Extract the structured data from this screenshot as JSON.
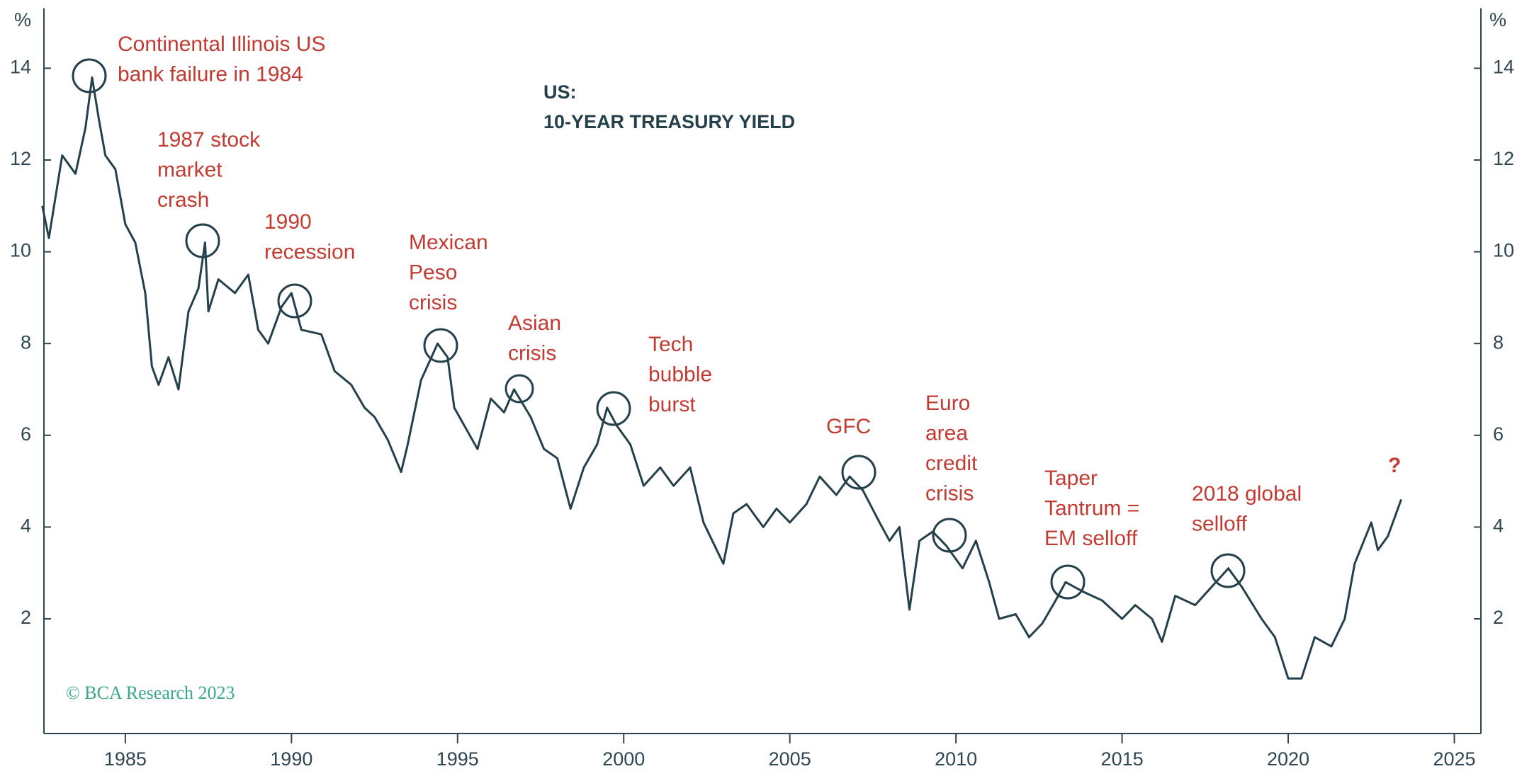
{
  "chart_data": {
    "type": "line",
    "title_lines": [
      "US:",
      "10-YEAR TREASURY YIELD"
    ],
    "y_label": "%",
    "credit": "© BCA Research 2023",
    "x": [
      1982.5,
      1982.7,
      1983.1,
      1983.5,
      1983.8,
      1984.0,
      1984.2,
      1984.4,
      1984.7,
      1985.0,
      1985.3,
      1985.6,
      1985.8,
      1986.0,
      1986.3,
      1986.6,
      1986.9,
      1987.2,
      1987.4,
      1987.5,
      1987.8,
      1988.3,
      1988.7,
      1989.0,
      1989.3,
      1989.7,
      1990.0,
      1990.3,
      1990.9,
      1991.3,
      1991.8,
      1992.2,
      1992.5,
      1992.9,
      1993.3,
      1993.5,
      1993.9,
      1994.4,
      1994.7,
      1994.9,
      1995.6,
      1996.0,
      1996.4,
      1996.7,
      1997.2,
      1997.6,
      1998.0,
      1998.4,
      1998.8,
      1999.2,
      1999.5,
      1999.8,
      2000.2,
      2000.6,
      2001.1,
      2001.5,
      2002.0,
      2002.4,
      2003.0,
      2003.3,
      2003.7,
      2004.2,
      2004.6,
      2005.0,
      2005.5,
      2005.9,
      2006.4,
      2006.8,
      2007.2,
      2007.7,
      2008.0,
      2008.3,
      2008.6,
      2008.9,
      2009.3,
      2009.7,
      2010.2,
      2010.6,
      2011.0,
      2011.3,
      2011.8,
      2012.2,
      2012.6,
      2013.0,
      2013.3,
      2013.8,
      2014.4,
      2015.0,
      2015.4,
      2015.9,
      2016.2,
      2016.6,
      2017.2,
      2017.7,
      2018.2,
      2018.6,
      2019.2,
      2019.6,
      2020.0,
      2020.4,
      2020.8,
      2021.3,
      2021.7,
      2022.0,
      2022.5,
      2022.7,
      2023.0,
      2023.4
    ],
    "series": [
      {
        "name": "US 10-year Treasury yield",
        "color": "#24404a",
        "values": [
          11.0,
          10.3,
          12.1,
          11.7,
          12.7,
          13.8,
          12.9,
          12.1,
          11.8,
          10.6,
          10.2,
          9.1,
          7.5,
          7.1,
          7.7,
          7.0,
          8.7,
          9.2,
          10.2,
          8.7,
          9.4,
          9.1,
          9.5,
          8.3,
          8.0,
          8.8,
          9.1,
          8.3,
          8.2,
          7.4,
          7.1,
          6.6,
          6.4,
          5.9,
          5.2,
          5.8,
          7.2,
          8.0,
          7.7,
          6.6,
          5.7,
          6.8,
          6.5,
          7.0,
          6.4,
          5.7,
          5.5,
          4.4,
          5.3,
          5.8,
          6.6,
          6.2,
          5.8,
          4.9,
          5.3,
          4.9,
          5.3,
          4.1,
          3.2,
          4.3,
          4.5,
          4.0,
          4.4,
          4.1,
          4.5,
          5.1,
          4.7,
          5.1,
          4.8,
          4.1,
          3.7,
          4.0,
          2.2,
          3.7,
          3.9,
          3.6,
          3.1,
          3.7,
          2.8,
          2.0,
          2.1,
          1.6,
          1.9,
          2.4,
          2.8,
          2.6,
          2.4,
          2.0,
          2.3,
          2.0,
          1.5,
          2.5,
          2.3,
          2.7,
          3.1,
          2.7,
          2.0,
          1.6,
          0.7,
          0.7,
          1.6,
          1.4,
          2.0,
          3.2,
          4.1,
          3.5,
          3.8,
          4.6
        ]
      }
    ],
    "xlim": [
      1982.55,
      2025.8
    ],
    "xticks": [
      1985,
      1990,
      1995,
      2000,
      2005,
      2010,
      2015,
      2020,
      2025
    ],
    "ylim": [
      -0.5,
      15
    ],
    "yticks": [
      2,
      4,
      6,
      8,
      10,
      12,
      14
    ],
    "y2lim": [
      -0.5,
      15
    ],
    "y2ticks": [
      2,
      4,
      6,
      8,
      10,
      12,
      14
    ],
    "annotations": [
      {
        "lines": [
          "Continental Illinois US",
          "bank failure in 1984"
        ]
      },
      {
        "lines": [
          "1987 stock",
          "market",
          "crash"
        ]
      },
      {
        "lines": [
          "1990",
          "recession"
        ]
      },
      {
        "lines": [
          "Mexican",
          "Peso",
          "crisis"
        ]
      },
      {
        "lines": [
          "Asian",
          "crisis"
        ]
      },
      {
        "lines": [
          "Tech",
          "bubble",
          "burst"
        ]
      },
      {
        "lines": [
          "GFC"
        ]
      },
      {
        "lines": [
          "Euro",
          "area",
          "credit",
          "crisis"
        ]
      },
      {
        "lines": [
          "Taper",
          "Tantrum =",
          "EM selloff"
        ]
      },
      {
        "lines": [
          "2018 global",
          "selloff"
        ]
      },
      {
        "lines": [
          "?"
        ]
      }
    ]
  }
}
